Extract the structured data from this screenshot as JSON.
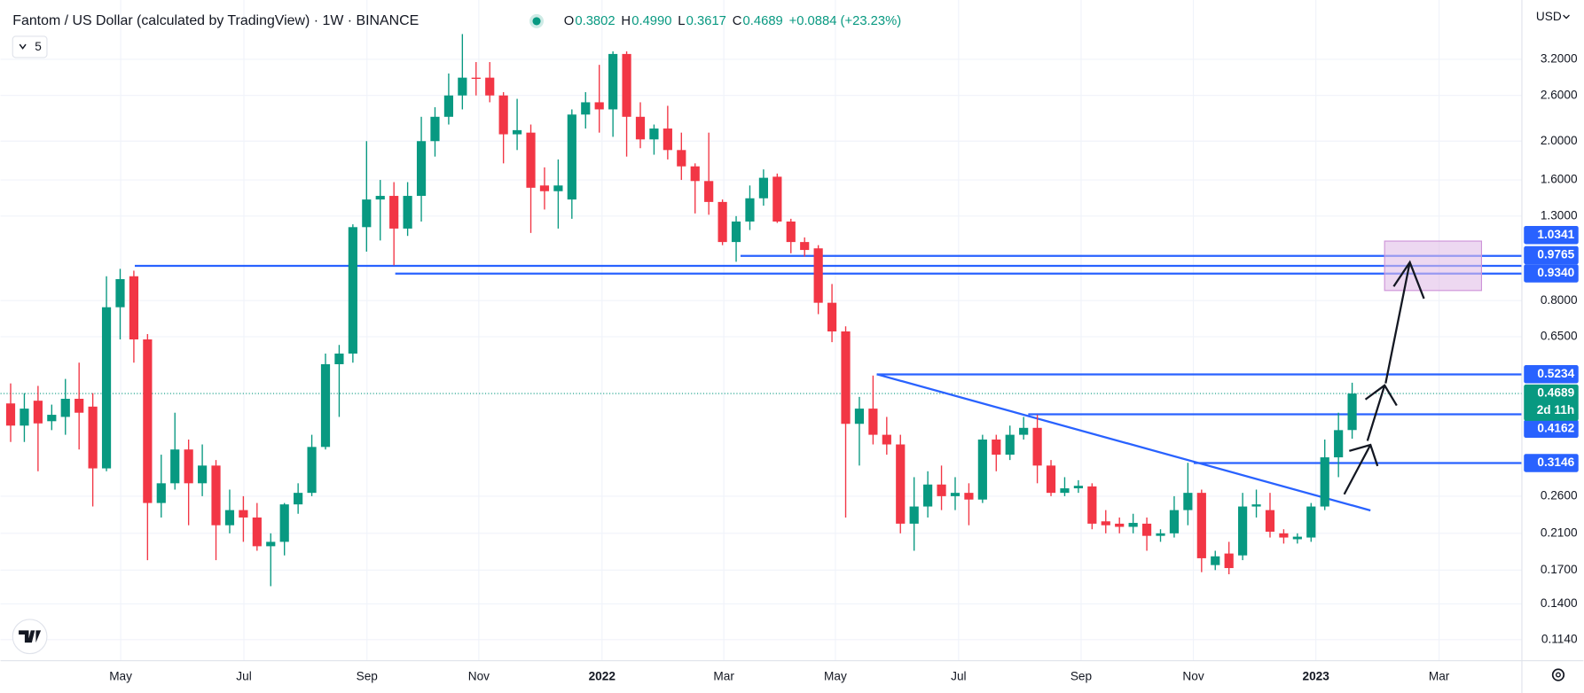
{
  "chart_data": {
    "type": "candlestick",
    "title": "Fantom / US Dollar (calculated by TradingView) · 1W · BINANCE",
    "ohlc_legend": [
      {
        "key": "O",
        "text": "0.3802"
      },
      {
        "key": "H",
        "text": "0.4990"
      },
      {
        "key": "L",
        "text": "0.3617"
      },
      {
        "key": "C",
        "text": "0.4689"
      }
    ],
    "change": "+0.0884 (+23.23%)",
    "indicators_count": 5,
    "currency": "USD",
    "log_scale": true,
    "grid": true,
    "up_color": "#089981",
    "down_color": "#f23645",
    "level_color": "#2962ff",
    "x": [
      0,
      1,
      2,
      3,
      4,
      5,
      6,
      7,
      8,
      9,
      10,
      11,
      12,
      13,
      14,
      15,
      16,
      17,
      18,
      19,
      20,
      21,
      22,
      23,
      24,
      25,
      26,
      27,
      28,
      29,
      30,
      31,
      32,
      33,
      34,
      35,
      36,
      37,
      38,
      39,
      40,
      41,
      42,
      43,
      44,
      45,
      46,
      47,
      48,
      49,
      50,
      51,
      52,
      53,
      54,
      55,
      56,
      57,
      58,
      59,
      60,
      61,
      62,
      63,
      64,
      65,
      66,
      67,
      68,
      69,
      70,
      71,
      72,
      73,
      74,
      75,
      76,
      77,
      78,
      79,
      80,
      81,
      82,
      83,
      84,
      85,
      86,
      87,
      88,
      89,
      90,
      91,
      92,
      93,
      94,
      95,
      96,
      97,
      98
    ],
    "open": [
      0.443,
      0.39,
      0.45,
      0.4,
      0.41,
      0.455,
      0.435,
      0.305,
      0.77,
      0.92,
      0.64,
      0.25,
      0.28,
      0.34,
      0.28,
      0.31,
      0.22,
      0.24,
      0.23,
      0.195,
      0.2,
      0.248,
      0.265,
      0.345,
      0.555,
      0.59,
      1.22,
      1.43,
      1.46,
      1.21,
      1.46,
      2.0,
      2.3,
      2.6,
      2.88,
      2.88,
      2.6,
      2.08,
      2.1,
      1.55,
      1.5,
      1.43,
      2.33,
      2.5,
      2.4,
      3.3,
      2.3,
      2.02,
      2.15,
      1.9,
      1.73,
      1.59,
      1.41,
      1.12,
      1.26,
      1.44,
      1.63,
      1.26,
      1.12,
      1.08,
      0.79,
      0.67,
      0.394,
      0.43,
      0.37,
      0.35,
      0.222,
      0.245,
      0.278,
      0.26,
      0.265,
      0.255,
      0.36,
      0.33,
      0.37,
      0.385,
      0.31,
      0.265,
      0.272,
      0.275,
      0.225,
      0.222,
      0.218,
      0.222,
      0.207,
      0.21,
      0.24,
      0.265,
      0.175,
      0.187,
      0.185,
      0.245,
      0.24,
      0.21,
      0.203,
      0.205,
      0.245,
      0.325,
      0.3802
    ],
    "high": [
      0.497,
      0.47,
      0.49,
      0.44,
      0.51,
      0.56,
      0.47,
      0.92,
      0.96,
      0.95,
      0.66,
      0.33,
      0.42,
      0.36,
      0.35,
      0.32,
      0.27,
      0.26,
      0.25,
      0.21,
      0.25,
      0.28,
      0.37,
      0.59,
      0.62,
      1.24,
      2.0,
      1.6,
      1.58,
      1.58,
      2.3,
      2.43,
      2.95,
      3.7,
      3.15,
      3.15,
      2.65,
      2.55,
      2.2,
      1.72,
      1.8,
      2.4,
      2.65,
      3.1,
      3.35,
      3.35,
      2.5,
      2.2,
      2.45,
      2.1,
      1.76,
      2.1,
      1.43,
      1.3,
      1.55,
      1.7,
      1.66,
      1.28,
      1.15,
      1.1,
      0.88,
      0.69,
      0.46,
      0.52,
      0.41,
      0.37,
      0.29,
      0.3,
      0.31,
      0.29,
      0.28,
      0.37,
      0.37,
      0.39,
      0.41,
      0.415,
      0.32,
      0.29,
      0.285,
      0.28,
      0.24,
      0.23,
      0.235,
      0.23,
      0.215,
      0.26,
      0.315,
      0.27,
      0.19,
      0.2,
      0.265,
      0.27,
      0.265,
      0.215,
      0.21,
      0.25,
      0.36,
      0.42,
      0.499
    ],
    "low": [
      0.355,
      0.355,
      0.3,
      0.38,
      0.37,
      0.34,
      0.245,
      0.3,
      0.64,
      0.56,
      0.18,
      0.23,
      0.27,
      0.22,
      0.26,
      0.18,
      0.21,
      0.2,
      0.19,
      0.155,
      0.185,
      0.235,
      0.26,
      0.34,
      0.41,
      0.56,
      1.06,
      1.13,
      0.98,
      1.16,
      1.26,
      1.83,
      2.2,
      2.4,
      2.6,
      2.5,
      1.76,
      1.9,
      1.18,
      1.35,
      1.21,
      1.28,
      2.15,
      2.1,
      2.05,
      1.83,
      1.92,
      1.85,
      1.8,
      1.6,
      1.32,
      1.31,
      1.1,
      1.0,
      1.2,
      1.38,
      1.25,
      1.05,
      1.03,
      0.74,
      0.63,
      0.23,
      0.31,
      0.35,
      0.33,
      0.21,
      0.19,
      0.23,
      0.24,
      0.24,
      0.22,
      0.25,
      0.3,
      0.32,
      0.36,
      0.28,
      0.26,
      0.26,
      0.265,
      0.215,
      0.21,
      0.21,
      0.21,
      0.19,
      0.2,
      0.205,
      0.22,
      0.168,
      0.17,
      0.166,
      0.18,
      0.23,
      0.205,
      0.198,
      0.198,
      0.2,
      0.24,
      0.29,
      0.3617
    ],
    "close": [
      0.39,
      0.43,
      0.395,
      0.415,
      0.455,
      0.42,
      0.305,
      0.77,
      0.905,
      0.64,
      0.25,
      0.28,
      0.34,
      0.28,
      0.31,
      0.22,
      0.24,
      0.23,
      0.195,
      0.2,
      0.248,
      0.265,
      0.345,
      0.555,
      0.59,
      1.22,
      1.43,
      1.46,
      1.21,
      1.46,
      2.0,
      2.3,
      2.6,
      2.88,
      2.86,
      2.6,
      2.08,
      2.13,
      1.53,
      1.5,
      1.55,
      2.33,
      2.5,
      2.4,
      3.3,
      2.3,
      2.02,
      2.15,
      1.9,
      1.73,
      1.59,
      1.41,
      1.12,
      1.26,
      1.44,
      1.62,
      1.26,
      1.12,
      1.07,
      0.79,
      0.67,
      0.394,
      0.43,
      0.37,
      0.35,
      0.222,
      0.245,
      0.278,
      0.26,
      0.265,
      0.255,
      0.36,
      0.33,
      0.37,
      0.385,
      0.31,
      0.265,
      0.272,
      0.276,
      0.222,
      0.22,
      0.218,
      0.223,
      0.207,
      0.21,
      0.24,
      0.265,
      0.182,
      0.184,
      0.172,
      0.245,
      0.248,
      0.212,
      0.205,
      0.206,
      0.245,
      0.325,
      0.38,
      0.4689
    ],
    "xlim": [
      -0.74,
      110.4
    ],
    "xticks": [
      {
        "value": 8.04,
        "label": "May"
      },
      {
        "value": 17.04,
        "label": "Jul"
      },
      {
        "value": 26.03,
        "label": "Sep"
      },
      {
        "value": 34.2,
        "label": "Nov"
      },
      {
        "value": 43.2,
        "label": "2022"
      },
      {
        "value": 52.1,
        "label": "Mar"
      },
      {
        "value": 60.25,
        "label": "May"
      },
      {
        "value": 69.25,
        "label": "Jul"
      },
      {
        "value": 78.2,
        "label": "Sep"
      },
      {
        "value": 86.4,
        "label": "Nov"
      },
      {
        "value": 95.35,
        "label": "2023"
      },
      {
        "value": 104.35,
        "label": "Mar"
      }
    ],
    "ylim": [
      0.101,
      4.5
    ],
    "yticks": [
      {
        "value": 3.2,
        "label": "3.2000"
      },
      {
        "value": 2.6,
        "label": "2.6000"
      },
      {
        "value": 2.0,
        "label": "2.0000"
      },
      {
        "value": 1.6,
        "label": "1.6000"
      },
      {
        "value": 1.3,
        "label": "1.3000"
      },
      {
        "value": 0.8,
        "label": "0.8000"
      },
      {
        "value": 0.65,
        "label": "0.6500"
      },
      {
        "value": 0.26,
        "label": "0.2600"
      },
      {
        "value": 0.21,
        "label": "0.2100"
      },
      {
        "value": 0.17,
        "label": "0.1700"
      },
      {
        "value": 0.14,
        "label": "0.1400"
      },
      {
        "value": 0.114,
        "label": "0.1140"
      }
    ],
    "levels": [
      {
        "value": 1.0341,
        "label": "1.0341"
      },
      {
        "value": 0.9765,
        "label": "0.9765"
      },
      {
        "value": 0.934,
        "label": "0.9340"
      },
      {
        "value": 0.5234,
        "label": "0.5234"
      },
      {
        "value": 0.4162,
        "label": "0.4162"
      },
      {
        "value": 0.3146,
        "label": "0.3146"
      }
    ],
    "last_price": {
      "value": 0.4689,
      "label": "0.4689",
      "countdown": "2d 11h"
    }
  }
}
